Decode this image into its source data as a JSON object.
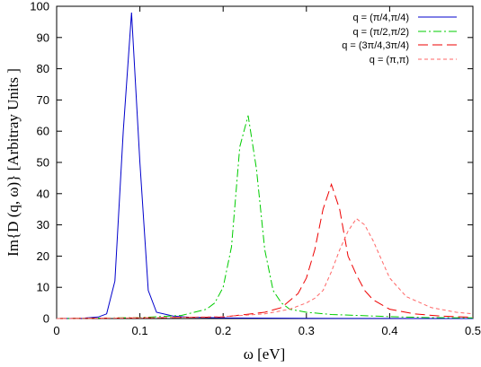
{
  "chart_data": {
    "type": "line",
    "xlabel": "ω [eV]",
    "ylabel": "Im{D (q, ω)} [Arbitray Units ]",
    "xlim": [
      0,
      0.5
    ],
    "ylim": [
      0,
      100
    ],
    "xticks": [
      0,
      0.1,
      0.2,
      0.3,
      0.4,
      0.5
    ],
    "xtick_labels": [
      "0",
      "0.1",
      "0.2",
      "0.3",
      "0.4",
      "0.5"
    ],
    "yticks": [
      0,
      10,
      20,
      30,
      40,
      50,
      60,
      70,
      80,
      90,
      100
    ],
    "ytick_labels": [
      "0",
      "10",
      "20",
      "30",
      "40",
      "50",
      "60",
      "70",
      "80",
      "90",
      "100"
    ],
    "grid": false,
    "legend_position": "top-right",
    "series": [
      {
        "name": "q = (π/4,π/4)",
        "color": "#0000cc",
        "dash": "solid",
        "x": [
          0,
          0.03,
          0.05,
          0.06,
          0.07,
          0.08,
          0.09,
          0.1,
          0.11,
          0.12,
          0.14,
          0.16,
          0.2,
          0.3,
          0.4,
          0.5
        ],
        "y": [
          0,
          0.1,
          0.5,
          1.5,
          12,
          60,
          98,
          50,
          9,
          2,
          0.8,
          0.4,
          0.2,
          0.05,
          0.02,
          0
        ]
      },
      {
        "name": "q = (π/2,π/2)",
        "color": "#00cc00",
        "dash": "dashdot",
        "x": [
          0,
          0.1,
          0.15,
          0.18,
          0.19,
          0.2,
          0.21,
          0.22,
          0.23,
          0.24,
          0.25,
          0.26,
          0.27,
          0.28,
          0.3,
          0.33,
          0.36,
          0.4,
          0.45,
          0.5
        ],
        "y": [
          0,
          0.3,
          1,
          3,
          5,
          10,
          23,
          55,
          65,
          48,
          22,
          9,
          5,
          3,
          2,
          1.3,
          1,
          0.6,
          0.3,
          0.2
        ]
      },
      {
        "name": "q = (3π/4,3π/4)",
        "color": "#ee0000",
        "dash": "longdash",
        "x": [
          0,
          0.1,
          0.2,
          0.25,
          0.27,
          0.29,
          0.3,
          0.31,
          0.32,
          0.33,
          0.34,
          0.35,
          0.36,
          0.37,
          0.38,
          0.4,
          0.43,
          0.46,
          0.5
        ],
        "y": [
          0,
          0.2,
          0.5,
          2,
          3.5,
          8,
          13,
          22,
          35,
          43,
          35,
          20,
          14,
          9,
          6,
          3,
          1.5,
          0.8,
          0.4
        ]
      },
      {
        "name": "q = (π,π)",
        "color": "#ff6666",
        "dash": "shortdash",
        "x": [
          0,
          0.1,
          0.2,
          0.25,
          0.28,
          0.3,
          0.31,
          0.32,
          0.33,
          0.34,
          0.35,
          0.36,
          0.37,
          0.38,
          0.39,
          0.4,
          0.42,
          0.45,
          0.48,
          0.5
        ],
        "y": [
          0,
          0.2,
          0.6,
          1.5,
          3,
          5,
          6.5,
          9,
          15,
          22,
          28,
          32,
          30,
          25,
          19,
          13,
          7,
          3.5,
          2,
          1.5
        ]
      }
    ]
  }
}
